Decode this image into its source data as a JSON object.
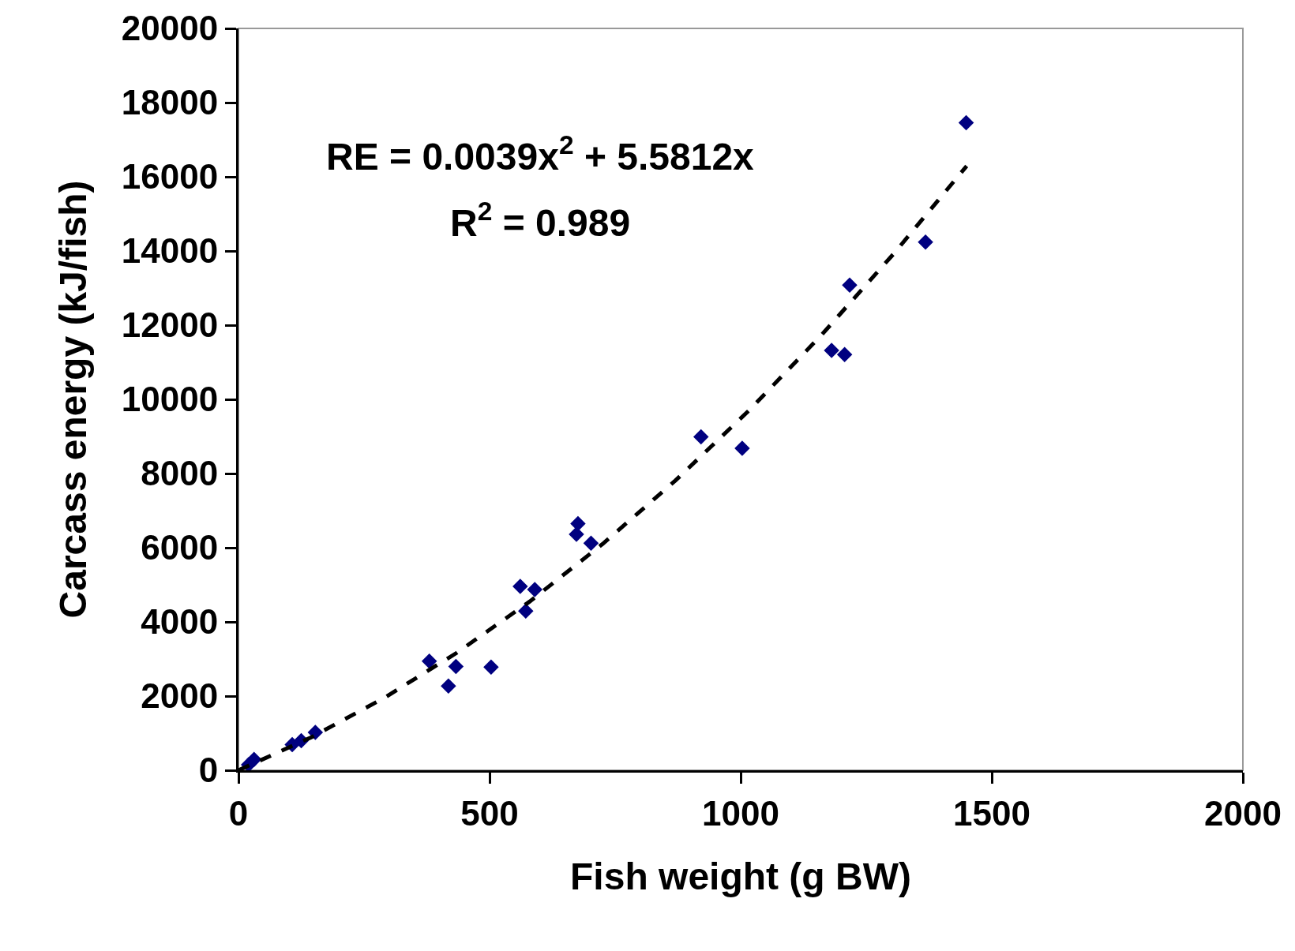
{
  "chart_data": {
    "type": "scatter",
    "xlabel": "Fish weight (g BW)",
    "ylabel": "Carcass energy (kJ/fish)",
    "annotations": [
      "RE = 0.0039x$^{2}$ + 5.5812x",
      "R$^{2}$ = 0.989"
    ],
    "xlim": [
      0,
      2000
    ],
    "xticks": [
      0,
      500,
      1000,
      1500,
      2000
    ],
    "ylim": [
      0,
      20000
    ],
    "yticks": [
      0,
      2000,
      4000,
      6000,
      8000,
      10000,
      12000,
      14000,
      16000,
      18000,
      20000
    ],
    "grid": false,
    "marker": "diamond",
    "series": [
      {
        "color": "#000080",
        "x": [
          20,
          31,
          107,
          125,
          153,
          380,
          418,
          433,
          503,
          561,
          572,
          590,
          673,
          676,
          702,
          921,
          1003,
          1181,
          1207,
          1217,
          1368,
          1449
        ],
        "values": [
          150,
          290,
          690,
          800,
          1020,
          2940,
          2270,
          2800,
          2780,
          4960,
          4290,
          4870,
          6360,
          6650,
          6120,
          8990,
          8680,
          11320,
          11210,
          13080,
          14240,
          17460
        ]
      },
      {
        "type": "line",
        "color": "#000000",
        "line_style": "dashed",
        "marker": "none",
        "x": [
          0,
          145,
          290,
          435,
          580,
          725,
          870,
          1015,
          1160,
          1305,
          1450
        ],
        "values": [
          0,
          890,
          1950,
          3170,
          4550,
          6100,
          7810,
          9680,
          11720,
          13930,
          16290
        ]
      }
    ]
  }
}
